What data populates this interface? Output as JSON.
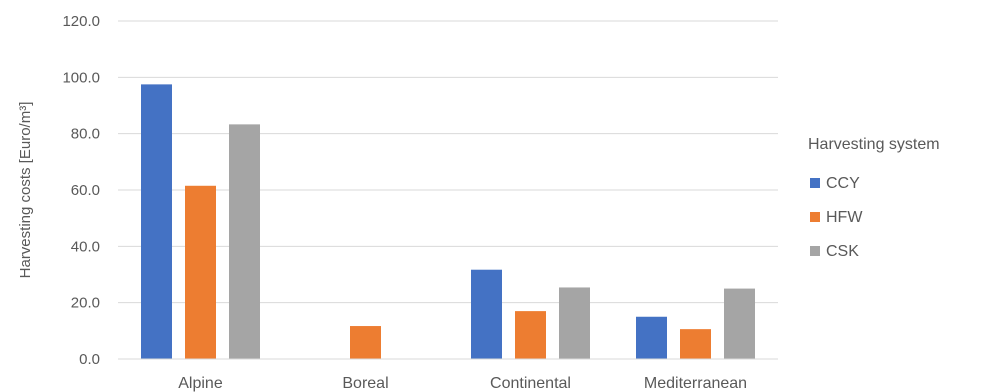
{
  "chart_data": {
    "type": "bar",
    "title": "",
    "xlabel": "",
    "ylabel": "Harvesting costs [Euro/m³]",
    "ylim": [
      0,
      120
    ],
    "yticks": [
      "0.0",
      "20.0",
      "40.0",
      "60.0",
      "80.0",
      "100.0",
      "120.0"
    ],
    "categories": [
      "Alpine",
      "Boreal",
      "Continental",
      "Mediterranean"
    ],
    "series": [
      {
        "name": "CCY",
        "color": "#4472C4",
        "values": [
          97.5,
          null,
          31.7,
          15.0
        ]
      },
      {
        "name": "HFW",
        "color": "#ED7D31",
        "values": [
          61.5,
          11.7,
          17.0,
          10.6
        ]
      },
      {
        "name": "CSK",
        "color": "#A5A5A5",
        "values": [
          83.3,
          null,
          25.4,
          25.0
        ]
      }
    ],
    "grid": true,
    "legend": {
      "title": "Harvesting system",
      "position": "right"
    }
  }
}
